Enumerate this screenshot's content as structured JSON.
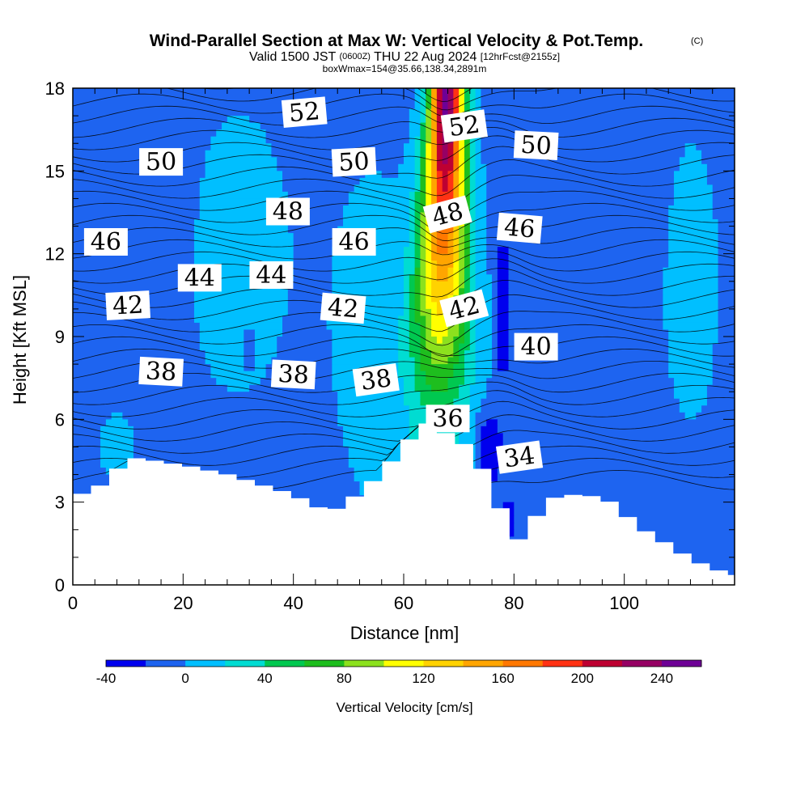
{
  "chart_data": {
    "type": "contour",
    "title": "Wind-Parallel Section at Max W: Vertical Velocity & Pot.Temp.",
    "title_mark": "(C)",
    "subtitle_parts": [
      "Valid 1500 JST",
      "(0600Z)",
      "THU 22 Aug 2024",
      "[12hrFcst@2155z]"
    ],
    "info": "boxWmax=154@35.66,138.34,2891m",
    "xlabel": "Distance [nm]",
    "ylabel": "Height [Kft MSL]",
    "xlim": [
      0,
      120
    ],
    "ylim": [
      0,
      18
    ],
    "x_ticks": [
      "0",
      "20",
      "40",
      "60",
      "80",
      "100"
    ],
    "y_ticks": [
      "0",
      "3",
      "6",
      "9",
      "12",
      "15",
      "18"
    ],
    "colorbar": {
      "label": "Vertical Velocity [cm/s]",
      "tick_labels": [
        "-40",
        "0",
        "40",
        "80",
        "120",
        "160",
        "200",
        "240"
      ],
      "range": [
        -40,
        260
      ],
      "step": 20,
      "colors": [
        "#0000ee",
        "#1e64f0",
        "#00bfff",
        "#00dcd2",
        "#00c850",
        "#1ebe1e",
        "#8ce11e",
        "#ffff00",
        "#ffd200",
        "#ffa500",
        "#ff7800",
        "#ff3214",
        "#be0032",
        "#960064",
        "#6e0096"
      ]
    },
    "theta_contour_labels": [
      {
        "text": "52",
        "x": 42,
        "y": 17.1,
        "rot": -5
      },
      {
        "text": "52",
        "x": 71,
        "y": 16.6,
        "rot": -8
      },
      {
        "text": "50",
        "x": 16,
        "y": 15.3,
        "rot": 0
      },
      {
        "text": "50",
        "x": 51,
        "y": 15.3,
        "rot": -3
      },
      {
        "text": "50",
        "x": 84,
        "y": 15.9,
        "rot": 3
      },
      {
        "text": "48",
        "x": 39,
        "y": 13.5,
        "rot": 0
      },
      {
        "text": "48",
        "x": 68,
        "y": 13.4,
        "rot": -15
      },
      {
        "text": "46",
        "x": 6,
        "y": 12.4,
        "rot": 0
      },
      {
        "text": "46",
        "x": 51,
        "y": 12.4,
        "rot": 0
      },
      {
        "text": "46",
        "x": 81,
        "y": 12.9,
        "rot": 5
      },
      {
        "text": "44",
        "x": 23,
        "y": 11.1,
        "rot": 0
      },
      {
        "text": "44",
        "x": 36,
        "y": 11.2,
        "rot": 0
      },
      {
        "text": "42",
        "x": 10,
        "y": 10.1,
        "rot": -3
      },
      {
        "text": "42",
        "x": 49,
        "y": 10.0,
        "rot": 5
      },
      {
        "text": "42",
        "x": 71,
        "y": 10.0,
        "rot": -15
      },
      {
        "text": "40",
        "x": 84,
        "y": 8.6,
        "rot": 0
      },
      {
        "text": "38",
        "x": 16,
        "y": 7.7,
        "rot": 3
      },
      {
        "text": "38",
        "x": 40,
        "y": 7.6,
        "rot": 3
      },
      {
        "text": "38",
        "x": 55,
        "y": 7.4,
        "rot": -8
      },
      {
        "text": "36",
        "x": 68,
        "y": 6.0,
        "rot": 0
      },
      {
        "text": "34",
        "x": 81,
        "y": 4.6,
        "rot": -8
      }
    ],
    "terrain_kft": [
      [
        0,
        3.3
      ],
      [
        3.3,
        3.6
      ],
      [
        6.5,
        4.2
      ],
      [
        10,
        4.6
      ],
      [
        19.5,
        4.3
      ],
      [
        26.5,
        4.0
      ],
      [
        33,
        3.6
      ],
      [
        38,
        3.3
      ],
      [
        42,
        2.9
      ],
      [
        45,
        2.6
      ],
      [
        48,
        3.0
      ],
      [
        51,
        3.4
      ],
      [
        55,
        4.2
      ],
      [
        59,
        5.2
      ],
      [
        63,
        5.9
      ],
      [
        66,
        5.5
      ],
      [
        71,
        4.9
      ],
      [
        74,
        3.6
      ],
      [
        77,
        2.3
      ],
      [
        79,
        1.6
      ],
      [
        82,
        2.4
      ],
      [
        86,
        3.2
      ],
      [
        91,
        3.3
      ],
      [
        96,
        3.0
      ],
      [
        101,
        2.1
      ],
      [
        106,
        1.5
      ],
      [
        110,
        1.0
      ],
      [
        114,
        0.6
      ],
      [
        120,
        0.3
      ]
    ]
  }
}
